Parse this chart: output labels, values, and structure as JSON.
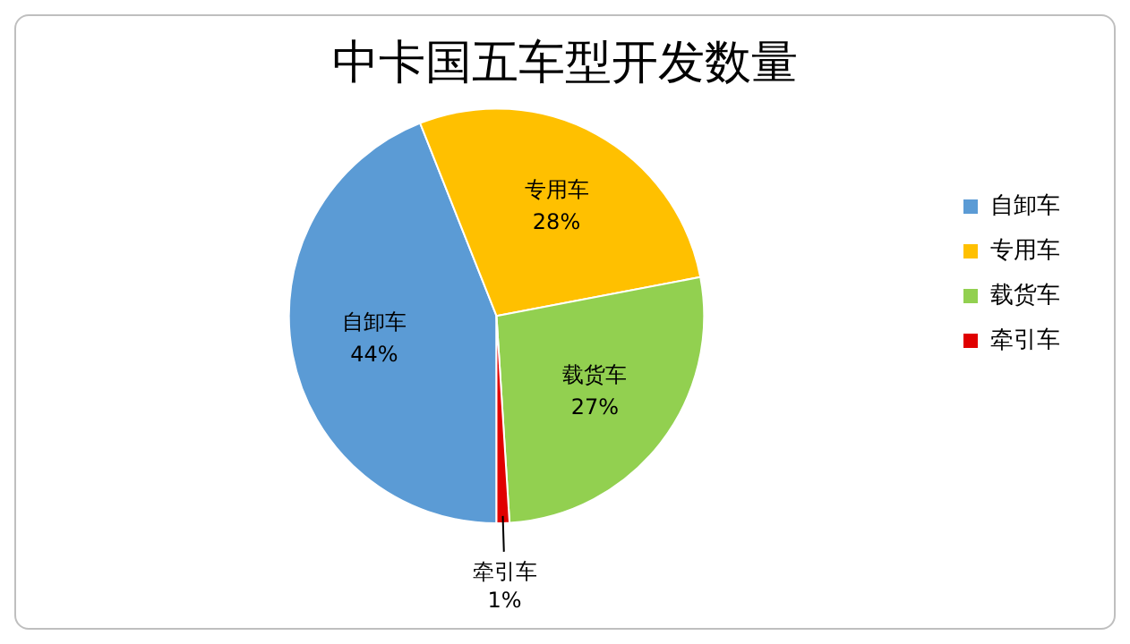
{
  "chart_data": {
    "type": "pie",
    "title": "中卡国五车型开发数量",
    "categories": [
      "自卸车",
      "专用车",
      "载货车",
      "牵引车"
    ],
    "values": [
      44,
      28,
      27,
      1
    ],
    "colors": [
      "#5b9bd5",
      "#ffc000",
      "#92d050",
      "#e00000"
    ],
    "value_labels": [
      "44%",
      "28%",
      "27%",
      "1%"
    ],
    "legend": "right"
  }
}
